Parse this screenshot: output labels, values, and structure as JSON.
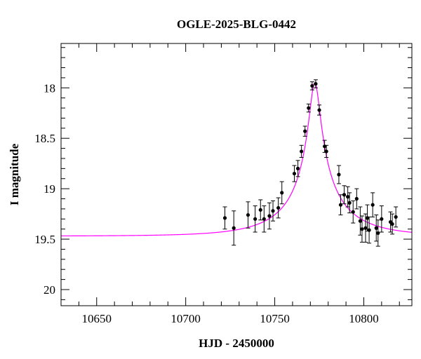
{
  "chart_data": {
    "type": "scatter",
    "title": "OGLE-2025-BLG-0442",
    "xlabel": "HJD - 2450000",
    "ylabel": "I magnitude",
    "xlim": [
      10630,
      10827
    ],
    "ylim": [
      20.16,
      17.56
    ],
    "y_inverted": true,
    "grid": false,
    "x_ticks": [
      10650,
      10700,
      10750,
      10800
    ],
    "y_ticks": [
      18,
      18.5,
      19,
      19.5,
      20
    ],
    "x_tick_labels": [
      "10650",
      "10700",
      "10750",
      "10800"
    ],
    "y_tick_labels": [
      "18",
      "18.5",
      "19",
      "19.5",
      "20"
    ],
    "model": {
      "color": "#ff00ff",
      "baseline_mag": 19.47,
      "peak_hjd": 10772.5,
      "peak_mag": 17.95,
      "u0": 0.076,
      "tE": 37.2
    },
    "points": [
      {
        "x": 10722,
        "y": 19.29,
        "err": 0.11
      },
      {
        "x": 10727,
        "y": 19.39,
        "err": 0.17
      },
      {
        "x": 10735,
        "y": 19.26,
        "err": 0.13
      },
      {
        "x": 10739,
        "y": 19.3,
        "err": 0.13
      },
      {
        "x": 10742,
        "y": 19.21,
        "err": 0.1
      },
      {
        "x": 10744,
        "y": 19.3,
        "err": 0.13
      },
      {
        "x": 10747,
        "y": 19.27,
        "err": 0.13
      },
      {
        "x": 10749,
        "y": 19.22,
        "err": 0.1
      },
      {
        "x": 10752,
        "y": 19.19,
        "err": 0.1
      },
      {
        "x": 10754,
        "y": 19.04,
        "err": 0.11
      },
      {
        "x": 10761,
        "y": 18.85,
        "err": 0.08
      },
      {
        "x": 10763,
        "y": 18.8,
        "err": 0.08
      },
      {
        "x": 10765,
        "y": 18.63,
        "err": 0.06
      },
      {
        "x": 10767,
        "y": 18.43,
        "err": 0.05
      },
      {
        "x": 10769,
        "y": 18.2,
        "err": 0.04
      },
      {
        "x": 10771,
        "y": 17.98,
        "err": 0.04
      },
      {
        "x": 10773,
        "y": 17.96,
        "err": 0.04
      },
      {
        "x": 10775,
        "y": 18.22,
        "err": 0.05
      },
      {
        "x": 10778,
        "y": 18.58,
        "err": 0.06
      },
      {
        "x": 10779,
        "y": 18.63,
        "err": 0.06
      },
      {
        "x": 10786,
        "y": 18.86,
        "err": 0.09
      },
      {
        "x": 10787,
        "y": 19.16,
        "err": 0.1
      },
      {
        "x": 10789,
        "y": 19.06,
        "err": 0.09
      },
      {
        "x": 10791,
        "y": 19.08,
        "err": 0.1
      },
      {
        "x": 10792,
        "y": 19.14,
        "err": 0.1
      },
      {
        "x": 10794,
        "y": 19.23,
        "err": 0.11
      },
      {
        "x": 10796,
        "y": 19.1,
        "err": 0.1
      },
      {
        "x": 10798,
        "y": 19.32,
        "err": 0.14
      },
      {
        "x": 10799,
        "y": 19.4,
        "err": 0.13
      },
      {
        "x": 10801,
        "y": 19.39,
        "err": 0.14
      },
      {
        "x": 10802,
        "y": 19.29,
        "err": 0.13
      },
      {
        "x": 10803,
        "y": 19.41,
        "err": 0.13
      },
      {
        "x": 10805,
        "y": 19.16,
        "err": 0.12
      },
      {
        "x": 10807,
        "y": 19.39,
        "err": 0.13
      },
      {
        "x": 10808,
        "y": 19.44,
        "err": 0.13
      },
      {
        "x": 10810,
        "y": 19.3,
        "err": 0.13
      },
      {
        "x": 10815,
        "y": 19.33,
        "err": 0.1
      },
      {
        "x": 10816,
        "y": 19.35,
        "err": 0.1
      },
      {
        "x": 10818,
        "y": 19.28,
        "err": 0.1
      }
    ]
  }
}
